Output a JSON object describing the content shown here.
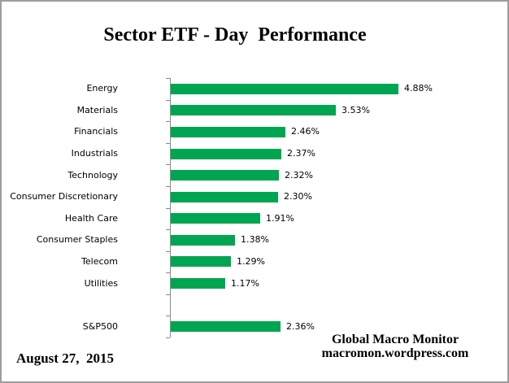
{
  "window": {
    "background": "#FFFFFF",
    "border_color": "#9D9D9D"
  },
  "chart_data": {
    "type": "bar",
    "orientation": "horizontal",
    "title": "Sector ETF - Day  Performance",
    "categories": [
      "Energy",
      "Materials",
      "Financials",
      "Industrials",
      "Technology",
      "Consumer Discretionary",
      "Health Care",
      "Consumer Staples",
      "Telecom",
      "Utilities",
      "",
      "S&P500"
    ],
    "values": [
      4.88,
      3.53,
      2.46,
      2.37,
      2.32,
      2.3,
      1.91,
      1.38,
      1.29,
      1.17,
      null,
      2.36
    ],
    "value_labels": [
      "4.88%",
      "3.53%",
      "2.46%",
      "2.37%",
      "2.32%",
      "2.30%",
      "1.91%",
      "1.38%",
      "1.29%",
      "1.17%",
      "",
      "2.36%"
    ],
    "bar_color": "#00A551",
    "axis_color": "#8A8A8A",
    "text_color": "#000000",
    "xlim": [
      0,
      5.2
    ],
    "grid": false,
    "legend": "none"
  },
  "footer": {
    "date": "August 27,  2015",
    "attribution_line1": "Global Macro Monitor",
    "attribution_line2": "macromon.wordpress.com"
  }
}
